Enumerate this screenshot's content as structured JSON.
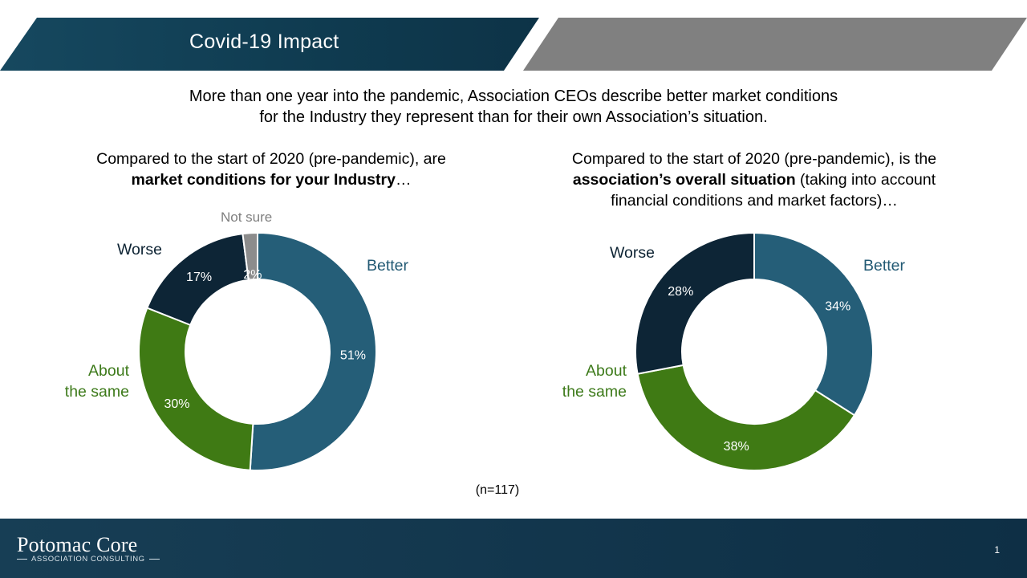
{
  "header": {
    "title": "Covid-19 Impact"
  },
  "subtitle": {
    "line1": "More than one year into the pandemic, Association CEOs describe better market conditions",
    "line2": "for the Industry they represent than for their own Association’s situation."
  },
  "left_question": {
    "line1": "Compared to the start of 2020 (pre-pandemic), are",
    "bold": "market conditions for your Industry",
    "tail": "…"
  },
  "right_question": {
    "line1": "Compared to the start of 2020 (pre-pandemic), is the",
    "bold": "association’s overall situation",
    "tail": " (taking into account",
    "line3": "financial conditions and market factors)…"
  },
  "labels": {
    "better": "Better",
    "worse": "Worse",
    "about_the_same_1": "About",
    "about_the_same_2": "the same",
    "not_sure": "Not sure"
  },
  "colors": {
    "better": "#255e78",
    "about_the_same": "#3f7a14",
    "worse": "#0d2536",
    "not_sure": "#8c8c8c"
  },
  "chart_data": [
    {
      "type": "pie",
      "variant": "donut",
      "categories": [
        "Better",
        "About the same",
        "Worse",
        "Not sure"
      ],
      "values": [
        51,
        30,
        17,
        2
      ],
      "value_labels": [
        "51%",
        "30%",
        "17%",
        "2%"
      ]
    },
    {
      "type": "pie",
      "variant": "donut",
      "categories": [
        "Better",
        "About the same",
        "Worse"
      ],
      "values": [
        34,
        38,
        28
      ],
      "value_labels": [
        "34%",
        "38%",
        "28%"
      ]
    }
  ],
  "note": "(n=117)",
  "footer": {
    "logo_main": "Potomac Core",
    "logo_sub": "ASSOCIATION CONSULTING",
    "page_number": "1"
  }
}
